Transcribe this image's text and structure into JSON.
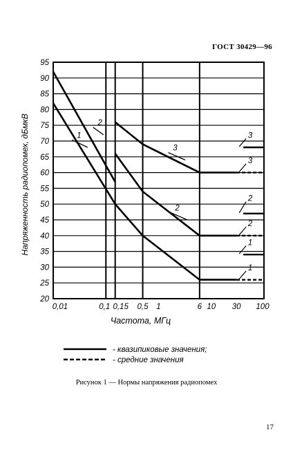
{
  "document": {
    "header": "ГОСТ 30429—96",
    "caption": "Рисунок 1 — Нормы напряжения радиопомех",
    "page_number": "17"
  },
  "legend": {
    "entries": [
      {
        "label": "- квазипиковые значения;",
        "style": "solid"
      },
      {
        "label": "- средние значения",
        "style": "dashed"
      }
    ]
  },
  "chart_data": {
    "type": "line",
    "xlabel": "Частота, МГц",
    "ylabel": "Напряженность радиопомех, дБмкВ",
    "x_scale": "log",
    "xlim": [
      0.01,
      100
    ],
    "ylim": [
      20,
      95
    ],
    "x_ticks": [
      {
        "v": 0.01,
        "label": "0,01"
      },
      {
        "v": 0.1,
        "label": "0,1"
      },
      {
        "v": 0.15,
        "label": "0,15"
      },
      {
        "v": 0.5,
        "label": "0,5"
      },
      {
        "v": 1,
        "label": "1"
      },
      {
        "v": 6,
        "label": "6"
      },
      {
        "v": 10,
        "label": "10"
      },
      {
        "v": 30,
        "label": "30"
      },
      {
        "v": 100,
        "label": "100"
      }
    ],
    "x_gridlines": [
      0.1,
      0.15,
      0.5,
      6
    ],
    "y_ticks": [
      95,
      90,
      85,
      80,
      75,
      70,
      65,
      60,
      55,
      50,
      45,
      40,
      35,
      30,
      25,
      20
    ],
    "grid": true,
    "series": [
      {
        "label": "1",
        "style": "solid",
        "points": [
          [
            0.01,
            82
          ],
          [
            0.15,
            50
          ],
          [
            0.5,
            40
          ],
          [
            6,
            26
          ]
        ],
        "label_at": [
          0.03,
          71,
          0.045,
          68
        ]
      },
      {
        "label": "2",
        "style": "solid",
        "points": [
          [
            0.01,
            92
          ],
          [
            0.15,
            57
          ]
        ],
        "label_at": [
          0.075,
          75,
          0.09,
          72
        ]
      },
      {
        "label": "2",
        "style": "solid",
        "points": [
          [
            0.15,
            66
          ],
          [
            0.5,
            54
          ],
          [
            6,
            40
          ]
        ],
        "label_at": [
          2.2,
          48,
          3.5,
          45
        ]
      },
      {
        "label": "3",
        "style": "solid",
        "points": [
          [
            0.15,
            76
          ],
          [
            0.5,
            69
          ],
          [
            6,
            60
          ]
        ],
        "label_at": [
          2.0,
          67,
          3.2,
          64
        ]
      },
      {
        "label": "3",
        "style": "solid",
        "points": [
          [
            6,
            60
          ],
          [
            30,
            60
          ]
        ]
      },
      {
        "label": "2",
        "style": "solid",
        "points": [
          [
            6,
            40
          ],
          [
            30,
            40
          ]
        ]
      },
      {
        "label": "1",
        "style": "solid",
        "points": [
          [
            6,
            26
          ],
          [
            30,
            26
          ]
        ]
      }
    ],
    "side_labels": [
      {
        "label": "3",
        "style": "solid",
        "y": 68,
        "label_y": 71
      },
      {
        "label": "3",
        "style": "dashed",
        "y": 60,
        "label_y": 63
      },
      {
        "label": "2",
        "style": "solid",
        "y": 47,
        "label_y": 51
      },
      {
        "label": "2",
        "style": "dashed",
        "y": 40,
        "label_y": 43
      },
      {
        "label": "1",
        "style": "solid",
        "y": 34,
        "label_y": 37
      },
      {
        "label": "1",
        "style": "dashed",
        "y": 26,
        "label_y": 29
      }
    ]
  }
}
